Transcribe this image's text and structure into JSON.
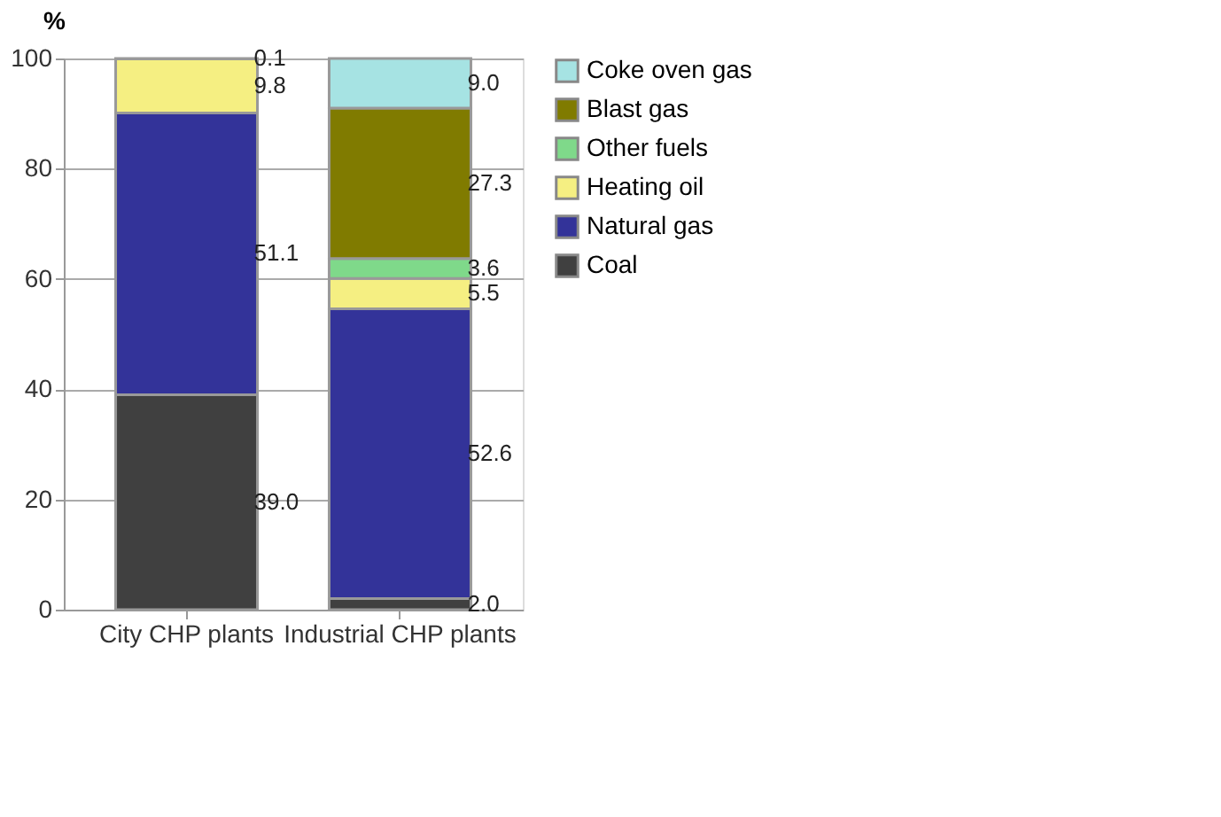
{
  "chart_data": {
    "type": "bar",
    "stacked": true,
    "ylabel": "%",
    "categories": [
      "City CHP plants",
      "Industrial CHP plants"
    ],
    "series": [
      {
        "name": "Coal",
        "color": "#404040",
        "values": [
          39.0,
          2.0
        ],
        "value_labels": [
          "39.0",
          "2.0"
        ]
      },
      {
        "name": "Natural gas",
        "color": "#333399",
        "values": [
          51.1,
          52.6
        ],
        "value_labels": [
          "51.1",
          "52.6"
        ]
      },
      {
        "name": "Heating oil",
        "color": "#f5ef82",
        "values": [
          9.8,
          5.5
        ],
        "value_labels": [
          "9.8",
          "5.5"
        ]
      },
      {
        "name": "Other fuels",
        "color": "#7fd98a",
        "values": [
          0.1,
          3.6
        ],
        "value_labels": [
          "0.1",
          "3.6"
        ]
      },
      {
        "name": "Blast gas",
        "color": "#807b00",
        "values": [
          null,
          27.3
        ],
        "value_labels": [
          null,
          "27.3"
        ]
      },
      {
        "name": "Coke oven gas",
        "color": "#a6e3e3",
        "values": [
          null,
          9.0
        ],
        "value_labels": [
          null,
          "9.0"
        ]
      }
    ],
    "ylim": [
      0,
      100
    ],
    "yticks": [
      0,
      20,
      40,
      60,
      80,
      100
    ],
    "grid": "y",
    "legend": "right"
  }
}
